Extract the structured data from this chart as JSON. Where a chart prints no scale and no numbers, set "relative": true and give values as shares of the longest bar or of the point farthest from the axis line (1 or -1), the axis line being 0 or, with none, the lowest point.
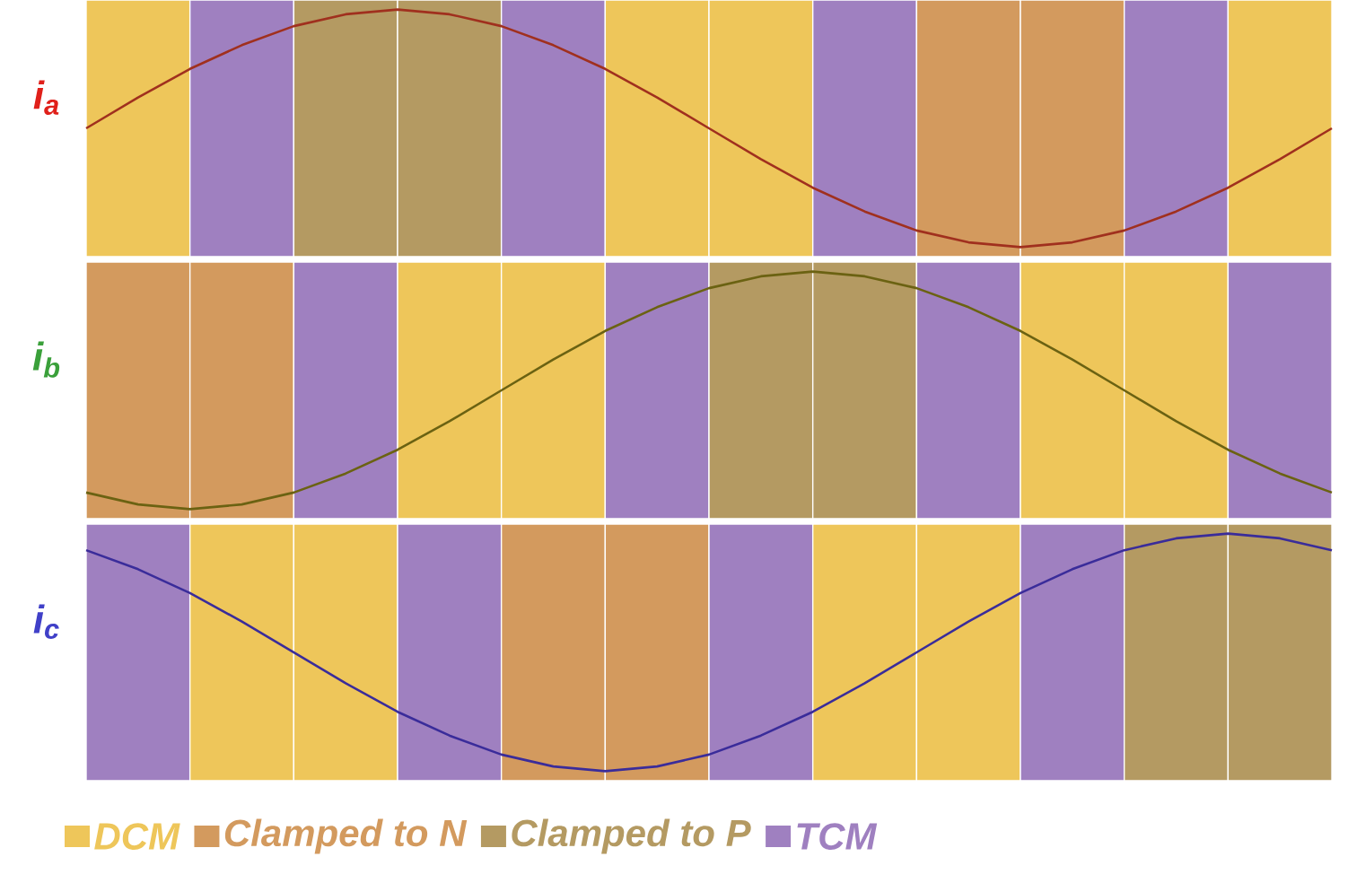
{
  "chart_data": [
    {
      "type": "line",
      "relative": true,
      "ylabel": "i$_{a}$",
      "categories": [
        null,
        null,
        null,
        null,
        null,
        null,
        null,
        null,
        null,
        null,
        null,
        null,
        null,
        null,
        null,
        null,
        null,
        null,
        null,
        null,
        null,
        null,
        null,
        null,
        null
      ],
      "series": [
        {
          "color": "#a0301e",
          "values": [
            0.5,
            0.63,
            0.75,
            0.85,
            0.93,
            0.98,
            1,
            0.98,
            0.93,
            0.85,
            0.75,
            0.63,
            0.5,
            0.37,
            0.25,
            0.15,
            0.07,
            0.02,
            0,
            0.02,
            0.07,
            0.15,
            0.25,
            0.37,
            0.5
          ]
        }
      ]
    },
    {
      "type": "line",
      "relative": true,
      "ylabel": "i$_{b}$",
      "categories": [
        null,
        null,
        null,
        null,
        null,
        null,
        null,
        null,
        null,
        null,
        null,
        null,
        null,
        null,
        null,
        null,
        null,
        null,
        null,
        null,
        null,
        null,
        null,
        null,
        null
      ],
      "series": [
        {
          "color": "#6b6212",
          "values": [
            0.07,
            0.02,
            0,
            0.02,
            0.07,
            0.15,
            0.25,
            0.37,
            0.5,
            0.63,
            0.75,
            0.85,
            0.93,
            0.98,
            1,
            0.98,
            0.93,
            0.85,
            0.75,
            0.63,
            0.5,
            0.37,
            0.25,
            0.15,
            0.07
          ]
        }
      ]
    },
    {
      "type": "line",
      "relative": true,
      "ylabel": "i$_{c}$",
      "categories": [
        null,
        null,
        null,
        null,
        null,
        null,
        null,
        null,
        null,
        null,
        null,
        null,
        null,
        null,
        null,
        null,
        null,
        null,
        null,
        null,
        null,
        null,
        null,
        null,
        null
      ],
      "series": [
        {
          "color": "#3a2c9a",
          "values": [
            0.93,
            0.85,
            0.75,
            0.63,
            0.5,
            0.37,
            0.25,
            0.15,
            0.07,
            0.02,
            0,
            0.02,
            0.07,
            0.15,
            0.25,
            0.37,
            0.5,
            0.63,
            0.75,
            0.85,
            0.93,
            0.98,
            1,
            0.98,
            0.93
          ]
        }
      ],
      "annotations": [
        "DCM",
        "Clamped to N",
        "Clamped to P",
        "TCM"
      ]
    }
  ]
}
